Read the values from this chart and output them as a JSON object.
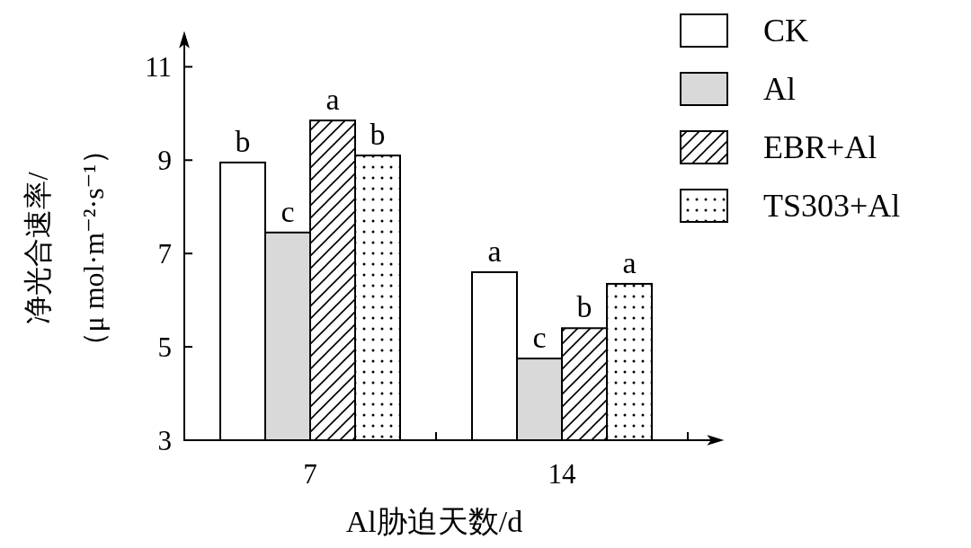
{
  "chart_data": {
    "type": "bar",
    "categories": [
      "7",
      "14"
    ],
    "xlabel": "Al胁迫天数/d",
    "ylabel": "净光合速率/\n（μ mol·m⁻²·s⁻¹）",
    "ylim": [
      3,
      11.7
    ],
    "yticks": [
      3,
      5,
      7,
      9,
      11
    ],
    "legend": "top right",
    "series": [
      {
        "name": "CK",
        "color": "#ffffff",
        "values": [
          8.95,
          6.6
        ],
        "value_labels": [
          "b",
          "a"
        ]
      },
      {
        "name": "Al",
        "color": "#d9d9d9",
        "values": [
          7.45,
          4.75
        ],
        "value_labels": [
          "c",
          "c"
        ]
      },
      {
        "name": "EBR+Al",
        "color": "#000000",
        "values": [
          9.85,
          5.4
        ],
        "value_labels": [
          "a",
          "b"
        ]
      },
      {
        "name": "TS303+Al",
        "color": "#000000",
        "values": [
          9.1,
          6.35
        ],
        "value_labels": [
          "b",
          "a"
        ]
      }
    ]
  }
}
